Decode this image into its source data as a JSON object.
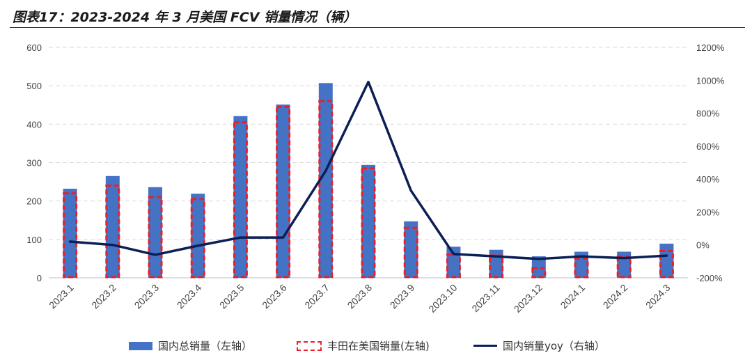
{
  "title": "图表17：2023-2024 年 3 月美国 FCV 销量情况（辆）",
  "chart_data": {
    "type": "bar",
    "categories": [
      "2023.1",
      "2023.2",
      "2023.3",
      "2023.4",
      "2023.5",
      "2023.6",
      "2023.7",
      "2023.8",
      "2023.9",
      "2023.10",
      "2023.11",
      "2023.12",
      "2024.1",
      "2024.2",
      "2024.3"
    ],
    "series": [
      {
        "name": "国内总销量（左轴）",
        "kind": "bar",
        "axis": "left",
        "color": "#4472c4",
        "values": [
          232,
          265,
          236,
          219,
          421,
          451,
          507,
          294,
          147,
          81,
          73,
          56,
          68,
          68,
          89
        ]
      },
      {
        "name": "丰田在美国销量(左轴)",
        "kind": "bar-dashed",
        "axis": "left",
        "color": "#e8202a",
        "values": [
          220,
          240,
          210,
          205,
          405,
          445,
          460,
          285,
          130,
          60,
          58,
          25,
          50,
          55,
          70
        ]
      },
      {
        "name": "国内销量yoy（右轴）",
        "kind": "line",
        "axis": "right",
        "color": "#0c1f55",
        "values": [
          20,
          0,
          -60,
          -5,
          45,
          45,
          450,
          990,
          330,
          -55,
          -70,
          -85,
          -70,
          -80,
          -65
        ]
      }
    ],
    "y_left": {
      "min": 0,
      "max": 600,
      "ticks": [
        "0",
        "100",
        "200",
        "300",
        "400",
        "500",
        "600"
      ],
      "tick_values": [
        0,
        100,
        200,
        300,
        400,
        500,
        600
      ]
    },
    "y_right": {
      "min": -200,
      "max": 1200,
      "ticks": [
        "-200%",
        "0%",
        "200%",
        "400%",
        "600%",
        "800%",
        "1000%",
        "1200%"
      ],
      "tick_values": [
        -200,
        0,
        200,
        400,
        600,
        800,
        1000,
        1200
      ]
    },
    "grid": true,
    "legend_position": "bottom"
  }
}
